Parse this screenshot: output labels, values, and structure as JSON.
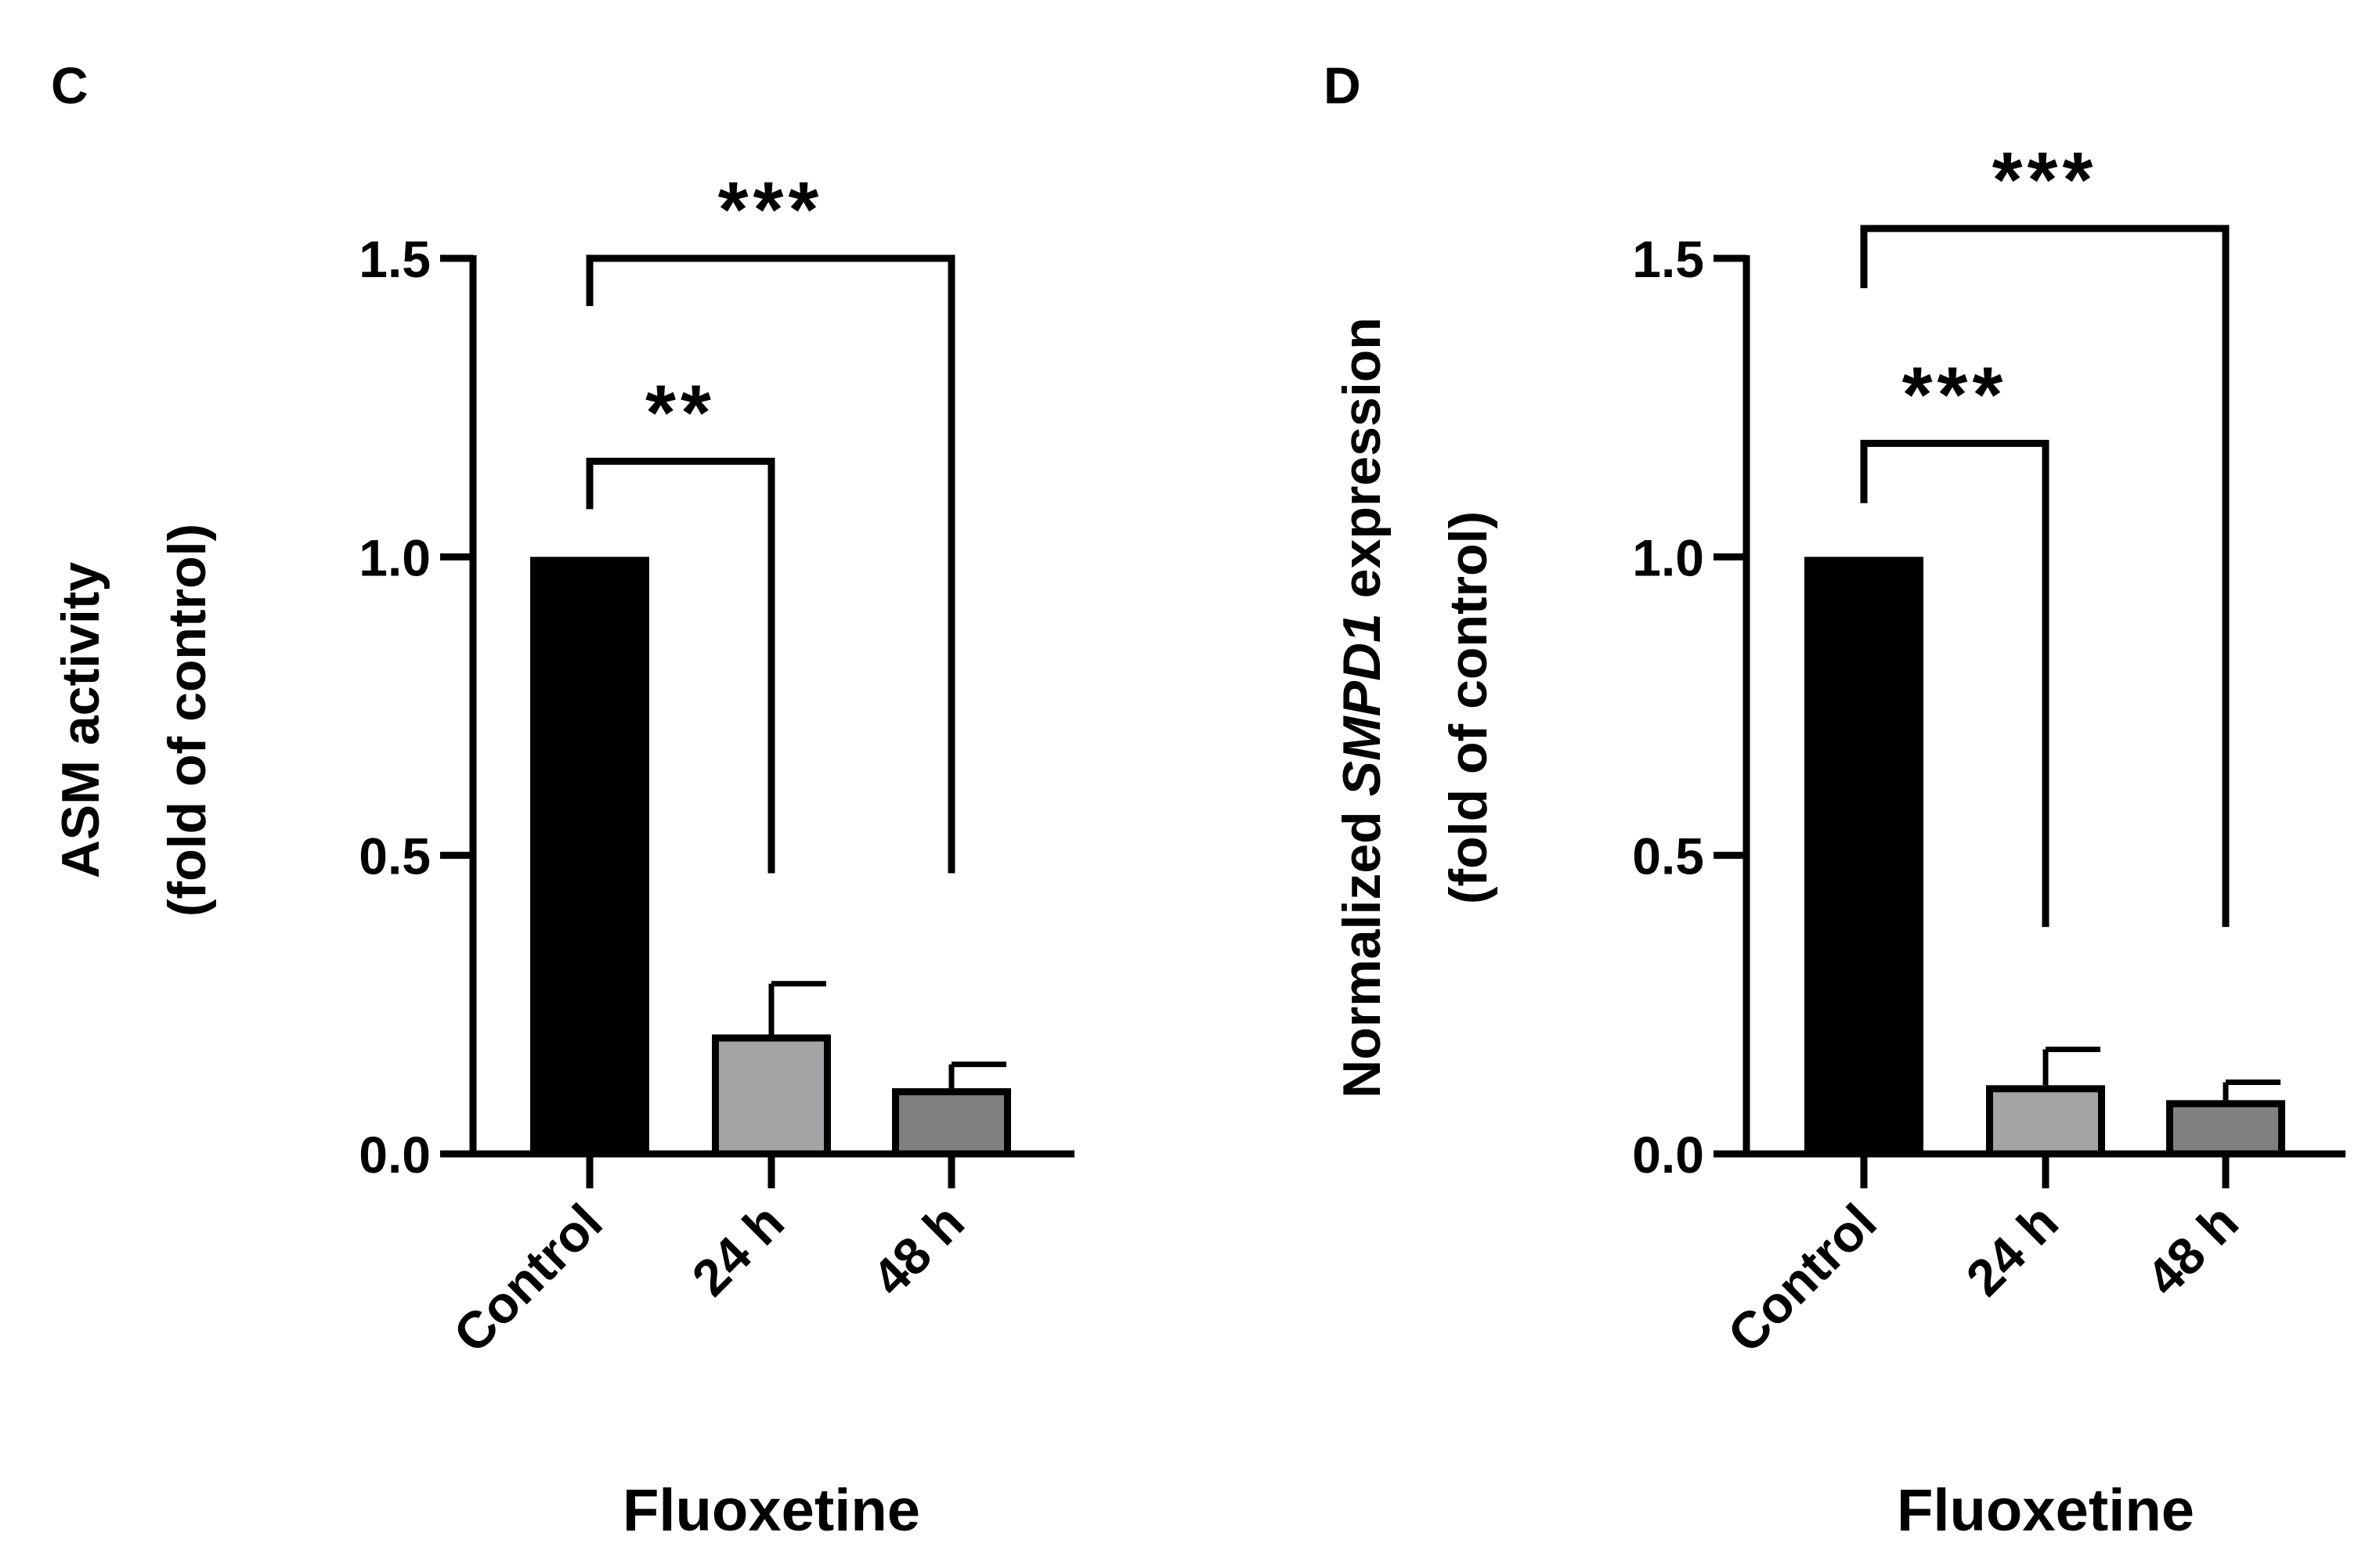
{
  "chart_data": [
    {
      "panel_label": "C",
      "type": "bar",
      "categories": [
        "Control",
        "24 h",
        "48 h"
      ],
      "values": [
        1.0,
        0.2,
        0.11
      ],
      "errors": [
        0.0,
        0.085,
        0.04
      ],
      "colors": [
        "#000000",
        "#a4a4a6",
        "#808080"
      ],
      "xlabel": "Fluoxetine",
      "ylabel": {
        "line1_pre": "ASM activity",
        "line1_italic": "",
        "line1_post": "",
        "line2": "(fold of control)"
      },
      "ylim": [
        0,
        1.5
      ],
      "yticks": [
        0.0,
        0.5,
        1.0,
        1.5
      ],
      "tick_labels": [
        "0.0",
        "0.5",
        "1.0",
        "1.5"
      ],
      "significance": [
        {
          "from": 0,
          "to": 1,
          "label": "**",
          "level": 1.16,
          "to_drop": 0.47,
          "from_drop": 1.08
        },
        {
          "from": 0,
          "to": 2,
          "label": "***",
          "level": 1.5,
          "to_drop": 0.47,
          "from_drop": 1.42
        }
      ]
    },
    {
      "panel_label": "D",
      "type": "bar",
      "categories": [
        "Control",
        "24 h",
        "48 h"
      ],
      "values": [
        1.0,
        0.115,
        0.09
      ],
      "errors": [
        0.0,
        0.06,
        0.03
      ],
      "colors": [
        "#000000",
        "#a4a4a6",
        "#808080"
      ],
      "xlabel": "Fluoxetine",
      "ylabel": {
        "line1_pre": "Normalized ",
        "line1_italic": "SMPD1",
        "line1_post": " expression",
        "line2": "(fold of control)"
      },
      "ylim": [
        0,
        1.5
      ],
      "yticks": [
        0.0,
        0.5,
        1.0,
        1.5
      ],
      "tick_labels": [
        "0.0",
        "0.5",
        "1.0",
        "1.5"
      ],
      "significance": [
        {
          "from": 0,
          "to": 1,
          "label": "***",
          "level": 1.19,
          "to_drop": 0.38,
          "from_drop": 1.09
        },
        {
          "from": 0,
          "to": 2,
          "label": "***",
          "level": 1.55,
          "to_drop": 0.38,
          "from_drop": 1.45
        }
      ]
    }
  ]
}
